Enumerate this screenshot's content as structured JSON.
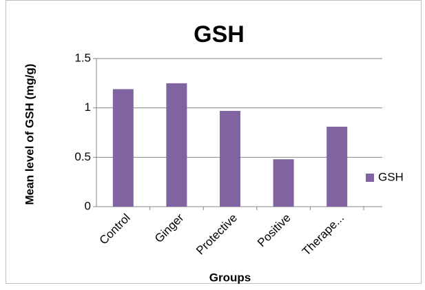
{
  "chart_data": {
    "type": "bar",
    "title": "GSH",
    "x_label": "Groups",
    "y_label": "Mean level of GSH (mg/g)",
    "categories": [
      "Control",
      "Ginger",
      "Protective",
      "Positive",
      "Therape..."
    ],
    "series": [
      {
        "name": "GSH",
        "color": "#8064a2",
        "values": [
          1.19,
          1.25,
          0.97,
          0.48,
          0.81
        ]
      }
    ],
    "ylim": [
      0,
      1.5
    ],
    "yticks": [
      0,
      0.5,
      1,
      1.5
    ],
    "grid": true,
    "legend": "right"
  }
}
